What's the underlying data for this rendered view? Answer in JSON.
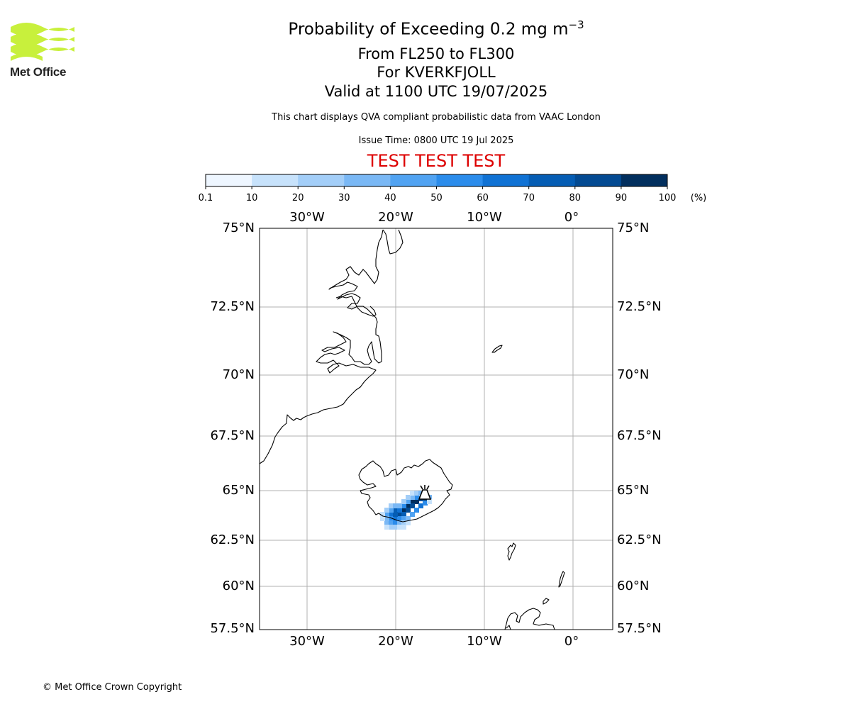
{
  "logo": {
    "text": "Met Office",
    "color": "#c8f03c"
  },
  "header": {
    "title_main": "Probability of Exceeding 0.2 mg m",
    "title_sup": "−3",
    "level": "From FL250 to FL300",
    "volcano": "For KVERKFJOLL",
    "valid": "Valid at 1100 UTC 19/07/2025",
    "info": "This chart displays QVA compliant probabilistic data from VAAC London",
    "issue": "Issue Time: 0800 UTC 19 Jul 2025",
    "test_banner": "TEST TEST TEST",
    "test_color": "#dd0000"
  },
  "colorbar": {
    "ticks": [
      "0.1",
      "10",
      "20",
      "30",
      "40",
      "50",
      "60",
      "70",
      "80",
      "90",
      "100"
    ],
    "unit": "(%)",
    "colors": [
      "#eef6ff",
      "#c7e2fb",
      "#a3cef8",
      "#7ab8f5",
      "#51a3f2",
      "#2b8ceb",
      "#1072d4",
      "#055db4",
      "#034a92",
      "#022f5e"
    ]
  },
  "map": {
    "lon_labels": [
      "30°W",
      "20°W",
      "10°W",
      "0°"
    ],
    "lat_labels": [
      "75°N",
      "72.5°N",
      "70°N",
      "67.5°N",
      "65°N",
      "62.5°N",
      "60°N",
      "57.5°N"
    ],
    "volcano_symbol": "volcano-icon"
  },
  "footer": {
    "copyright": "© Met Office Crown Copyright"
  }
}
